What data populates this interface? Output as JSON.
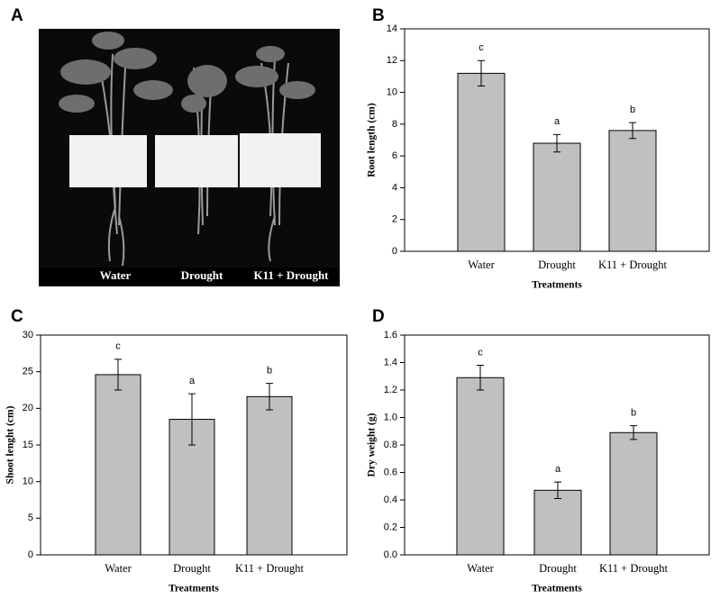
{
  "photo": {
    "panel": "A",
    "captions": [
      "Water",
      "Drought",
      "K11 + Drought"
    ]
  },
  "chart_data": [
    {
      "type": "bar",
      "panel": "B",
      "x_label": "Treatments",
      "y_label": "Root length (cm)",
      "categories": [
        "Water",
        "Drought",
        "K11 + Drought"
      ],
      "values": [
        11.2,
        6.8,
        7.6
      ],
      "errors": [
        0.8,
        0.55,
        0.5
      ],
      "annotations": [
        "c",
        "a",
        "b"
      ],
      "color": "#c0c0c0",
      "ylim": [
        0,
        14
      ],
      "yticks": [
        0,
        2,
        4,
        6,
        8,
        10,
        12,
        14
      ]
    },
    {
      "type": "bar",
      "panel": "C",
      "x_label": "Treatments",
      "y_label": "Shoot lenght (cm)",
      "categories": [
        "Water",
        "Drought",
        "K11 + Drought"
      ],
      "values": [
        24.6,
        18.5,
        21.6
      ],
      "errors": [
        2.1,
        3.5,
        1.8
      ],
      "annotations": [
        "c",
        "a",
        "b"
      ],
      "color": "#c0c0c0",
      "ylim": [
        0,
        30
      ],
      "yticks": [
        0,
        5,
        10,
        15,
        20,
        25,
        30
      ]
    },
    {
      "type": "bar",
      "panel": "D",
      "x_label": "Treatments",
      "y_label": "Dry weight (g)",
      "categories": [
        "Water",
        "Drought",
        "K11 + Drought"
      ],
      "values": [
        1.29,
        0.47,
        0.89
      ],
      "errors": [
        0.09,
        0.06,
        0.05
      ],
      "annotations": [
        "c",
        "a",
        "b"
      ],
      "color": "#c0c0c0",
      "ylim": [
        0,
        1.6
      ],
      "yticks": [
        {
          "value": 0,
          "label": "0.0"
        },
        0.2,
        0.4,
        0.6,
        0.8,
        {
          "value": 1,
          "label": "1.0"
        },
        1.2,
        1.4,
        1.6
      ]
    }
  ]
}
